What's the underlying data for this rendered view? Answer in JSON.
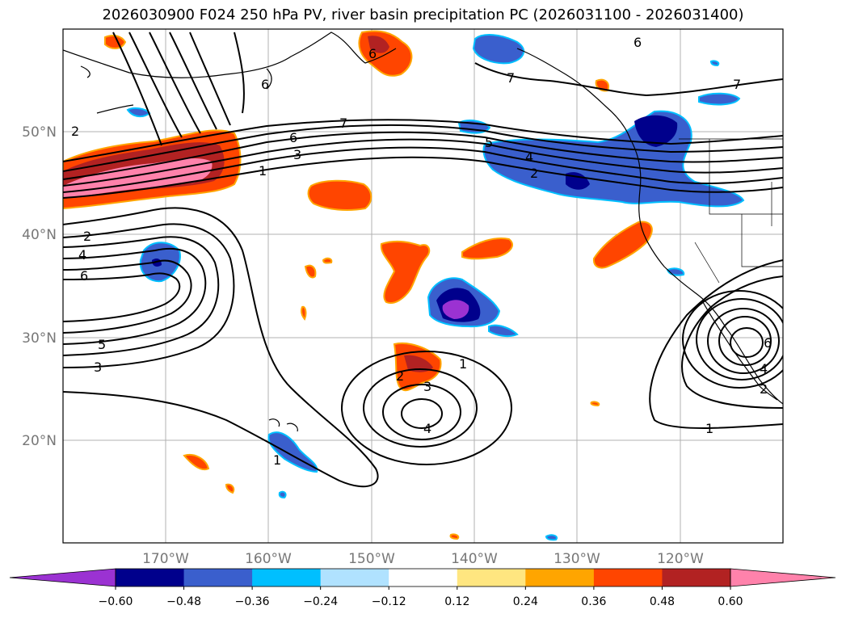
{
  "title": "2026030900 F024 250 hPa PV, river basin precipitation PC (2026031100 - 2026031400)",
  "latitude_labels": [
    "50°N",
    "40°N",
    "30°N",
    "20°N"
  ],
  "longitude_labels": [
    "170°W",
    "160°W",
    "150°W",
    "140°W",
    "130°W",
    "120°W"
  ],
  "colorbar": {
    "ticks": [
      "−0.60",
      "−0.48",
      "−0.36",
      "−0.24",
      "−0.12",
      "0.12",
      "0.24",
      "0.36",
      "0.48",
      "0.60"
    ],
    "colors": [
      "#9b32d2",
      "#00008c",
      "#3a5fcd",
      "#00bfff",
      "#b0e2ff",
      "#ffffff",
      "#ffe680",
      "#ffa500",
      "#ff4500",
      "#b22222",
      "#ff82ab"
    ]
  },
  "contour_labels": [
    "1",
    "2",
    "3",
    "4",
    "5",
    "6",
    "7"
  ]
}
